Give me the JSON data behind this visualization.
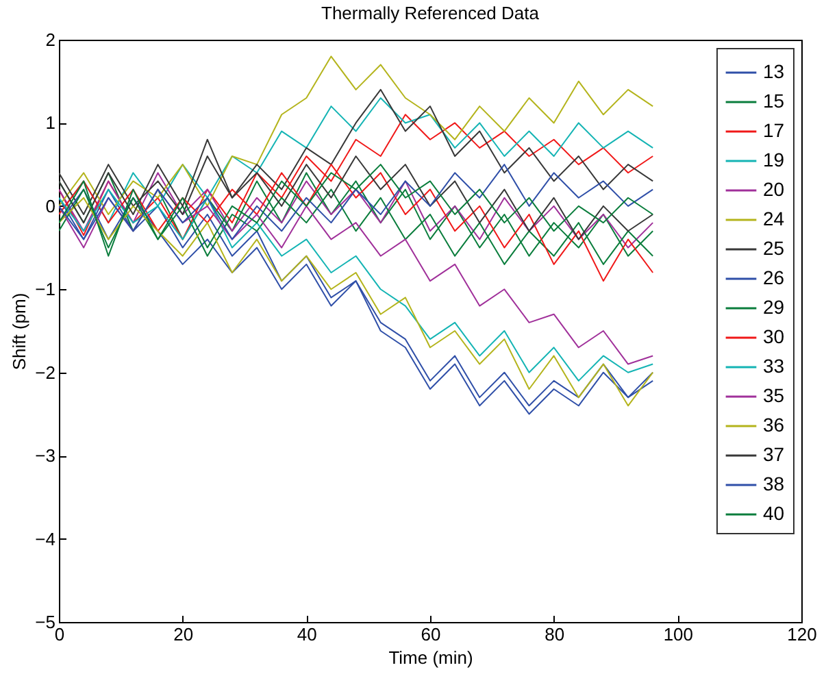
{
  "chart_data": {
    "type": "line",
    "title": "Thermally Referenced Data",
    "xlabel": "Time (min)",
    "ylabel": "Shift (pm)",
    "x": [
      0,
      4,
      8,
      12,
      16,
      20,
      24,
      28,
      32,
      36,
      40,
      44,
      48,
      52,
      56,
      60,
      64,
      68,
      72,
      76,
      80,
      84,
      88,
      92,
      96
    ],
    "xlim": [
      0,
      120
    ],
    "xticks": [
      0,
      20,
      40,
      60,
      80,
      100,
      120
    ],
    "ylim": [
      -5,
      2
    ],
    "yticks": [
      -5,
      -4,
      -3,
      -2,
      -1,
      0,
      1,
      2
    ],
    "grid": false,
    "legend": "top right",
    "series": [
      {
        "name": "13",
        "color": "#2f4fa8",
        "values": [
          0.1,
          -0.4,
          0.2,
          -0.3,
          0.0,
          -0.5,
          -0.1,
          -0.6,
          -0.3,
          -0.9,
          -0.6,
          -1.1,
          -0.9,
          -1.4,
          -1.6,
          -2.1,
          -1.8,
          -2.3,
          -2.0,
          -2.4,
          -2.1,
          -2.3,
          -1.9,
          -2.3,
          -2.0
        ]
      },
      {
        "name": "15",
        "color": "#0a7d3c",
        "values": [
          0.3,
          -0.2,
          0.4,
          -0.3,
          0.2,
          -0.4,
          0.1,
          -0.3,
          0.3,
          -0.2,
          0.4,
          -0.1,
          0.3,
          -0.2,
          0.2,
          -0.4,
          0.0,
          -0.5,
          -0.1,
          -0.6,
          -0.2,
          -0.5,
          -0.1,
          -0.6,
          -0.3
        ]
      },
      {
        "name": "17",
        "color": "#f01818",
        "values": [
          0.2,
          -0.35,
          0.3,
          -0.2,
          0.1,
          -0.4,
          0.2,
          -0.2,
          0.4,
          0.1,
          0.6,
          0.3,
          0.8,
          0.6,
          1.1,
          0.8,
          1.0,
          0.7,
          0.9,
          0.6,
          0.8,
          0.5,
          0.7,
          0.4,
          0.6
        ]
      },
      {
        "name": "19",
        "color": "#14b4b4",
        "values": [
          -0.1,
          0.3,
          -0.2,
          0.4,
          0.0,
          0.5,
          0.1,
          0.6,
          0.4,
          0.9,
          0.7,
          1.2,
          0.9,
          1.3,
          1.0,
          1.1,
          0.7,
          1.0,
          0.6,
          0.9,
          0.6,
          1.0,
          0.7,
          0.9,
          0.7
        ]
      },
      {
        "name": "20",
        "color": "#a0309a",
        "values": [
          0.2,
          -0.3,
          0.3,
          -0.2,
          0.4,
          -0.1,
          0.2,
          -0.3,
          0.1,
          -0.2,
          0.3,
          -0.1,
          0.2,
          -0.2,
          0.3,
          -0.3,
          0.0,
          -0.4,
          0.1,
          -0.3,
          0.0,
          -0.4,
          -0.1,
          -0.5,
          -0.2
        ]
      },
      {
        "name": "24",
        "color": "#b4b41c",
        "values": [
          0.0,
          0.4,
          -0.1,
          0.3,
          0.1,
          0.5,
          0.0,
          0.6,
          0.5,
          1.1,
          1.3,
          1.8,
          1.4,
          1.7,
          1.3,
          1.1,
          0.8,
          1.2,
          0.9,
          1.3,
          1.0,
          1.5,
          1.1,
          1.4,
          1.2
        ]
      },
      {
        "name": "25",
        "color": "#383838",
        "values": [
          0.4,
          -0.1,
          0.5,
          0.0,
          0.3,
          -0.1,
          0.6,
          0.1,
          0.5,
          0.2,
          0.7,
          0.5,
          1.0,
          1.4,
          0.9,
          1.2,
          0.6,
          0.9,
          0.4,
          0.7,
          0.3,
          0.6,
          0.2,
          0.5,
          0.3
        ]
      },
      {
        "name": "26",
        "color": "#2f4fa8",
        "values": [
          -0.2,
          0.2,
          -0.4,
          0.1,
          -0.3,
          -0.7,
          -0.4,
          -0.8,
          -0.5,
          -1.0,
          -0.7,
          -1.2,
          -0.9,
          -1.5,
          -1.7,
          -2.2,
          -1.9,
          -2.4,
          -2.1,
          -2.5,
          -2.2,
          -2.4,
          -2.0,
          -2.3,
          -2.1
        ]
      },
      {
        "name": "29",
        "color": "#0a7d3c",
        "values": [
          -0.3,
          0.2,
          -0.5,
          0.1,
          -0.4,
          0.0,
          -0.6,
          -0.1,
          -0.3,
          0.1,
          -0.2,
          0.2,
          -0.3,
          0.1,
          -0.4,
          -0.1,
          -0.6,
          -0.2,
          -0.7,
          -0.3,
          -0.6,
          -0.2,
          -0.7,
          -0.3,
          -0.6
        ]
      },
      {
        "name": "30",
        "color": "#f01818",
        "values": [
          -0.1,
          0.3,
          -0.2,
          0.2,
          -0.3,
          0.1,
          -0.2,
          0.2,
          -0.1,
          0.4,
          0.0,
          0.5,
          0.1,
          0.4,
          -0.1,
          0.2,
          -0.3,
          0.0,
          -0.5,
          -0.1,
          -0.7,
          -0.3,
          -0.9,
          -0.4,
          -0.8
        ]
      },
      {
        "name": "33",
        "color": "#14b4b4",
        "values": [
          0.1,
          -0.3,
          0.2,
          -0.2,
          0.0,
          -0.4,
          0.1,
          -0.5,
          -0.2,
          -0.6,
          -0.4,
          -0.8,
          -0.6,
          -1.0,
          -1.2,
          -1.6,
          -1.4,
          -1.8,
          -1.5,
          -2.0,
          -1.7,
          -2.1,
          -1.8,
          -2.0,
          -1.9
        ]
      },
      {
        "name": "35",
        "color": "#a0309a",
        "values": [
          0.0,
          -0.5,
          0.1,
          -0.3,
          0.2,
          -0.2,
          0.0,
          -0.4,
          -0.1,
          -0.5,
          0.0,
          -0.4,
          -0.2,
          -0.6,
          -0.4,
          -0.9,
          -0.7,
          -1.2,
          -1.0,
          -1.4,
          -1.3,
          -1.7,
          -1.5,
          -1.9,
          -1.8
        ]
      },
      {
        "name": "36",
        "color": "#b4b41c",
        "values": [
          -0.2,
          0.1,
          -0.4,
          0.0,
          -0.3,
          -0.6,
          -0.2,
          -0.8,
          -0.4,
          -0.9,
          -0.6,
          -1.0,
          -0.8,
          -1.3,
          -1.1,
          -1.7,
          -1.5,
          -1.9,
          -1.6,
          -2.2,
          -1.8,
          -2.3,
          -1.9,
          -2.4,
          -2.0
        ]
      },
      {
        "name": "37",
        "color": "#383838",
        "values": [
          0.3,
          -0.2,
          0.4,
          -0.1,
          0.5,
          0.0,
          0.8,
          0.1,
          0.4,
          0.0,
          0.5,
          0.1,
          0.6,
          0.2,
          0.5,
          0.0,
          0.3,
          -0.2,
          0.2,
          -0.3,
          0.1,
          -0.4,
          0.0,
          -0.3,
          -0.1
        ]
      },
      {
        "name": "38",
        "color": "#2f4fa8",
        "values": [
          0.0,
          -0.4,
          0.1,
          -0.3,
          0.2,
          -0.2,
          0.1,
          -0.4,
          0.0,
          -0.3,
          0.1,
          -0.2,
          0.2,
          -0.1,
          0.3,
          0.0,
          0.4,
          0.1,
          0.5,
          0.0,
          0.4,
          0.1,
          0.3,
          0.0,
          0.2
        ]
      },
      {
        "name": "40",
        "color": "#0a7d3c",
        "values": [
          -0.2,
          0.3,
          -0.6,
          0.2,
          -0.4,
          0.1,
          -0.5,
          0.0,
          -0.2,
          0.3,
          0.0,
          0.4,
          0.2,
          0.5,
          0.1,
          0.3,
          -0.1,
          0.2,
          -0.2,
          0.1,
          -0.3,
          0.0,
          -0.2,
          0.1,
          -0.1
        ]
      }
    ]
  }
}
